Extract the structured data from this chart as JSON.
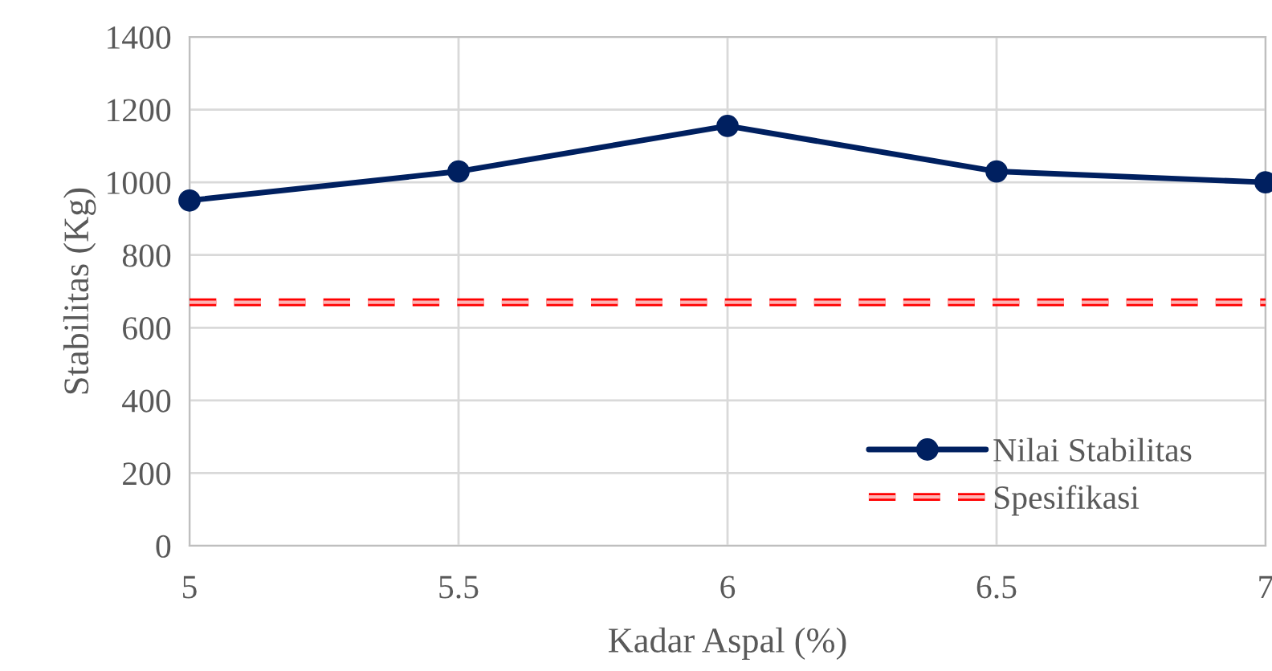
{
  "chart_data": {
    "type": "line",
    "xlabel": "Kadar Aspal (%)",
    "ylabel": "Stabilitas (Kg)",
    "series": [
      {
        "name": "Nilai Stabilitas",
        "color": "#002060",
        "x": [
          5,
          5.5,
          6,
          6.5,
          7
        ],
        "values": [
          950,
          1030,
          1155,
          1030,
          1000
        ],
        "marker": "circle",
        "line_style": "solid"
      },
      {
        "name": "Spesifikasi",
        "color": "#ff0000",
        "x": [
          5,
          7
        ],
        "values": [
          670,
          670
        ],
        "marker": "none",
        "line_style": "dashed"
      }
    ],
    "xlim": [
      5,
      7
    ],
    "xticks": [
      5,
      5.5,
      6,
      6.5,
      7
    ],
    "ylim": [
      0,
      1400
    ],
    "yticks": [
      0,
      200,
      400,
      600,
      800,
      1000,
      1200,
      1400
    ],
    "grid": true,
    "legend": "bottom right"
  }
}
